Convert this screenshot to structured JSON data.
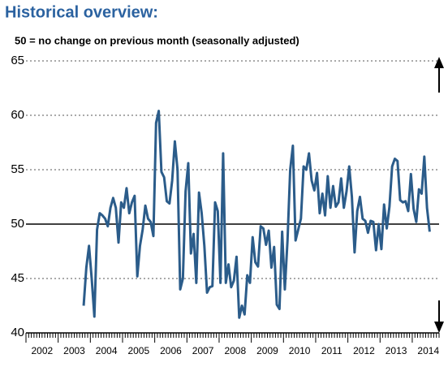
{
  "chart_data": {
    "type": "line",
    "title": "Historical overview:",
    "subtitle": "50 = no change on previous month (seasonally adjusted)",
    "categories": [
      null,
      null,
      null,
      null,
      null,
      null,
      "2002",
      null,
      null,
      null,
      null,
      null,
      null,
      null,
      null,
      null,
      null,
      null,
      "2003",
      null,
      null,
      null,
      null,
      null,
      null,
      null,
      null,
      null,
      null,
      null,
      "2004",
      null,
      null,
      null,
      null,
      null,
      null,
      null,
      null,
      null,
      null,
      null,
      "2005",
      null,
      null,
      null,
      null,
      null,
      null,
      null,
      null,
      null,
      null,
      null,
      "2006",
      null,
      null,
      null,
      null,
      null,
      null,
      null,
      null,
      null,
      null,
      null,
      "2007",
      null,
      null,
      null,
      null,
      null,
      null,
      null,
      null,
      null,
      null,
      null,
      "2008",
      null,
      null,
      null,
      null,
      null,
      null,
      null,
      null,
      null,
      null,
      null,
      "2009",
      null,
      null,
      null,
      null,
      null,
      null,
      null,
      null,
      null,
      null,
      null,
      "2010",
      null,
      null,
      null,
      null,
      null,
      null,
      null,
      null,
      null,
      null,
      null,
      "2011",
      null,
      null,
      null,
      null,
      null,
      null,
      null,
      null,
      null,
      null,
      null,
      "2012",
      null,
      null,
      null,
      null,
      null,
      null,
      null,
      null,
      null,
      null,
      null,
      "2013",
      null,
      null,
      null,
      null,
      null,
      null,
      null,
      null,
      null,
      null,
      null,
      "2014",
      null,
      null,
      null
    ],
    "values": [
      null,
      null,
      null,
      null,
      null,
      null,
      null,
      null,
      null,
      null,
      null,
      null,
      null,
      null,
      null,
      null,
      null,
      null,
      null,
      null,
      null,
      42.5,
      46,
      48,
      45,
      41.5,
      49.5,
      51,
      50.8,
      50.5,
      49.8,
      51.5,
      52.4,
      51.5,
      48.3,
      52,
      51.5,
      53.3,
      51,
      52,
      52.6,
      45.2,
      48,
      49.5,
      51.7,
      50.5,
      50.2,
      48.9,
      59.3,
      60.4,
      54.8,
      54.3,
      52.1,
      51.9,
      54,
      57.6,
      55,
      44,
      45,
      53,
      55.6,
      47.3,
      49.1,
      44.6,
      52.9,
      51,
      48,
      43.7,
      44.2,
      44.3,
      52,
      51.2,
      44.6,
      56.5,
      44.6,
      46.3,
      44.2,
      44.8,
      47,
      41.4,
      42.5,
      41.7,
      45.3,
      44.6,
      48.8,
      46.5,
      46.1,
      49.8,
      49.6,
      48.1,
      49.4,
      46,
      47.9,
      42.6,
      42.2,
      49.3,
      44,
      48.5,
      55,
      57.2,
      48.5,
      49.5,
      50.5,
      55.3,
      55,
      56.5,
      54,
      53.1,
      54.7,
      51,
      52.8,
      50.8,
      54.4,
      51.5,
      53.5,
      51.6,
      52,
      54.2,
      51.5,
      53,
      55.3,
      52.5,
      47.4,
      51.2,
      52.5,
      50.5,
      50.3,
      49.2,
      50.3,
      50.2,
      47.6,
      50,
      47.7,
      51.8,
      49.6,
      51.6,
      55.3,
      56,
      55.8,
      52.2,
      52,
      52.1,
      51.2,
      54.6,
      51.4,
      50.2,
      53.2,
      52.8,
      56.2,
      51.5,
      49.3,
      null,
      null,
      null
    ],
    "color": "#2b5c8a",
    "ylim": [
      40,
      65
    ],
    "yticks": [
      40,
      45,
      50,
      55,
      60,
      65
    ],
    "grid": true,
    "reference_line": 50
  }
}
